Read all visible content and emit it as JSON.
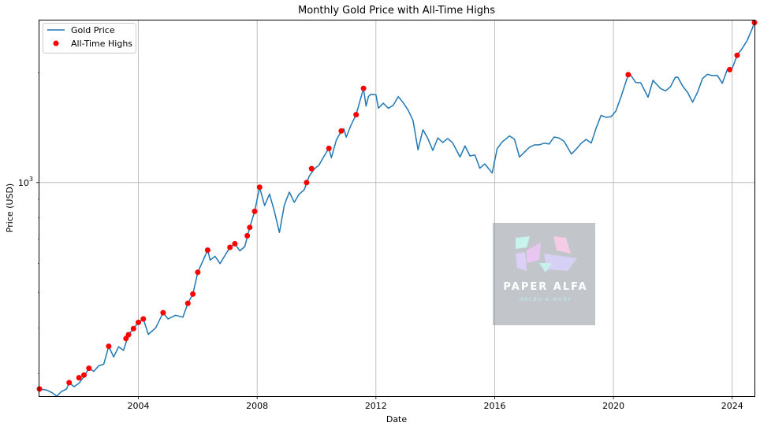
{
  "chart_data": {
    "type": "line",
    "title": "Monthly Gold Price with All-Time Highs",
    "xlabel": "Date",
    "ylabel": "Price (USD)",
    "y_scale": "log",
    "y_tick_label": {
      "base": "10",
      "exp": "3"
    },
    "x_ticks": [
      "2004",
      "2008",
      "2012",
      "2016",
      "2020",
      "2024"
    ],
    "xlim": [
      "2000-09",
      "2024-10"
    ],
    "ylim": [
      260,
      2780
    ],
    "grid": true,
    "legend_position": "upper-left",
    "colors": {
      "line": "#1f77b4",
      "marker": "#ff0000"
    },
    "series": [
      {
        "name": "Gold Price",
        "points": [
          [
            "2000-09",
            272
          ],
          [
            "2000-12",
            270
          ],
          [
            "2001-02",
            266
          ],
          [
            "2001-04",
            260
          ],
          [
            "2001-06",
            268
          ],
          [
            "2001-08",
            272
          ],
          [
            "2001-09",
            283
          ],
          [
            "2001-11",
            276
          ],
          [
            "2002-01",
            282
          ],
          [
            "2002-03",
            294
          ],
          [
            "2002-05",
            310
          ],
          [
            "2002-07",
            304
          ],
          [
            "2002-09",
            315
          ],
          [
            "2002-11",
            318
          ],
          [
            "2003-01",
            356
          ],
          [
            "2003-03",
            333
          ],
          [
            "2003-05",
            355
          ],
          [
            "2003-07",
            347
          ],
          [
            "2003-09",
            383
          ],
          [
            "2003-11",
            398
          ],
          [
            "2004-01",
            414
          ],
          [
            "2004-03",
            423
          ],
          [
            "2004-05",
            384
          ],
          [
            "2004-08",
            400
          ],
          [
            "2004-11",
            440
          ],
          [
            "2005-01",
            423
          ],
          [
            "2005-04",
            433
          ],
          [
            "2005-07",
            428
          ],
          [
            "2005-09",
            467
          ],
          [
            "2005-11",
            495
          ],
          [
            "2006-01",
            568
          ],
          [
            "2006-05",
            653
          ],
          [
            "2006-06",
            613
          ],
          [
            "2006-08",
            628
          ],
          [
            "2006-10",
            600
          ],
          [
            "2006-12",
            632
          ],
          [
            "2007-02",
            665
          ],
          [
            "2007-04",
            680
          ],
          [
            "2007-06",
            650
          ],
          [
            "2007-08",
            668
          ],
          [
            "2007-10",
            754
          ],
          [
            "2007-12",
            834
          ],
          [
            "2008-02",
            971
          ],
          [
            "2008-04",
            865
          ],
          [
            "2008-06",
            930
          ],
          [
            "2008-08",
            833
          ],
          [
            "2008-10",
            730
          ],
          [
            "2008-12",
            869
          ],
          [
            "2009-02",
            942
          ],
          [
            "2009-04",
            883
          ],
          [
            "2009-06",
            930
          ],
          [
            "2009-08",
            955
          ],
          [
            "2009-10",
            1040
          ],
          [
            "2009-12",
            1088
          ],
          [
            "2010-02",
            1117
          ],
          [
            "2010-04",
            1180
          ],
          [
            "2010-06",
            1241
          ],
          [
            "2010-07",
            1170
          ],
          [
            "2010-09",
            1307
          ],
          [
            "2010-11",
            1385
          ],
          [
            "2010-12",
            1405
          ],
          [
            "2011-01",
            1332
          ],
          [
            "2011-03",
            1439
          ],
          [
            "2011-05",
            1535
          ],
          [
            "2011-08",
            1812
          ],
          [
            "2011-09",
            1620
          ],
          [
            "2011-10",
            1722
          ],
          [
            "2011-11",
            1745
          ],
          [
            "2012-01",
            1740
          ],
          [
            "2012-02",
            1600
          ],
          [
            "2012-04",
            1650
          ],
          [
            "2012-06",
            1598
          ],
          [
            "2012-08",
            1628
          ],
          [
            "2012-10",
            1720
          ],
          [
            "2012-12",
            1657
          ],
          [
            "2013-02",
            1580
          ],
          [
            "2013-04",
            1480
          ],
          [
            "2013-06",
            1230
          ],
          [
            "2013-08",
            1395
          ],
          [
            "2013-10",
            1320
          ],
          [
            "2013-12",
            1225
          ],
          [
            "2014-02",
            1325
          ],
          [
            "2014-04",
            1288
          ],
          [
            "2014-06",
            1320
          ],
          [
            "2014-08",
            1285
          ],
          [
            "2014-11",
            1175
          ],
          [
            "2015-01",
            1260
          ],
          [
            "2015-03",
            1183
          ],
          [
            "2015-05",
            1190
          ],
          [
            "2015-07",
            1095
          ],
          [
            "2015-09",
            1125
          ],
          [
            "2015-12",
            1062
          ],
          [
            "2016-02",
            1238
          ],
          [
            "2016-04",
            1292
          ],
          [
            "2016-07",
            1342
          ],
          [
            "2016-09",
            1315
          ],
          [
            "2016-11",
            1174
          ],
          [
            "2017-01",
            1211
          ],
          [
            "2017-03",
            1249
          ],
          [
            "2017-05",
            1268
          ],
          [
            "2017-07",
            1269
          ],
          [
            "2017-09",
            1282
          ],
          [
            "2017-11",
            1275
          ],
          [
            "2018-01",
            1333
          ],
          [
            "2018-03",
            1325
          ],
          [
            "2018-05",
            1299
          ],
          [
            "2018-08",
            1198
          ],
          [
            "2018-10",
            1235
          ],
          [
            "2018-12",
            1282
          ],
          [
            "2019-02",
            1313
          ],
          [
            "2019-04",
            1283
          ],
          [
            "2019-06",
            1409
          ],
          [
            "2019-08",
            1528
          ],
          [
            "2019-10",
            1510
          ],
          [
            "2019-12",
            1515
          ],
          [
            "2020-02",
            1570
          ],
          [
            "2020-04",
            1712
          ],
          [
            "2020-07",
            1975
          ],
          [
            "2020-08",
            1968
          ],
          [
            "2020-10",
            1880
          ],
          [
            "2020-12",
            1878
          ],
          [
            "2021-03",
            1714
          ],
          [
            "2021-05",
            1906
          ],
          [
            "2021-08",
            1812
          ],
          [
            "2021-10",
            1783
          ],
          [
            "2021-12",
            1829
          ],
          [
            "2022-02",
            1943
          ],
          [
            "2022-03",
            1944
          ],
          [
            "2022-05",
            1837
          ],
          [
            "2022-07",
            1765
          ],
          [
            "2022-09",
            1660
          ],
          [
            "2022-11",
            1768
          ],
          [
            "2023-01",
            1928
          ],
          [
            "2023-03",
            1980
          ],
          [
            "2023-05",
            1963
          ],
          [
            "2023-07",
            1965
          ],
          [
            "2023-09",
            1870
          ],
          [
            "2023-11",
            2039
          ],
          [
            "2024-01",
            2055
          ],
          [
            "2024-03",
            2232
          ],
          [
            "2024-05",
            2328
          ],
          [
            "2024-07",
            2447
          ],
          [
            "2024-09",
            2634
          ],
          [
            "2024-10",
            2744
          ]
        ]
      },
      {
        "name": "All-Time Highs",
        "points": [
          [
            "2000-09",
            272
          ],
          [
            "2001-09",
            283
          ],
          [
            "2002-01",
            292
          ],
          [
            "2002-03",
            297
          ],
          [
            "2002-05",
            310
          ],
          [
            "2003-01",
            356
          ],
          [
            "2003-08",
            374
          ],
          [
            "2003-09",
            383
          ],
          [
            "2003-11",
            398
          ],
          [
            "2004-01",
            414
          ],
          [
            "2004-03",
            423
          ],
          [
            "2004-11",
            440
          ],
          [
            "2005-09",
            467
          ],
          [
            "2005-11",
            495
          ],
          [
            "2006-01",
            568
          ],
          [
            "2006-05",
            653
          ],
          [
            "2007-02",
            665
          ],
          [
            "2007-04",
            680
          ],
          [
            "2007-09",
            715
          ],
          [
            "2007-10",
            754
          ],
          [
            "2007-12",
            834
          ],
          [
            "2008-02",
            971
          ],
          [
            "2009-09",
            1000
          ],
          [
            "2009-11",
            1092
          ],
          [
            "2010-06",
            1241
          ],
          [
            "2010-11",
            1385
          ],
          [
            "2011-05",
            1535
          ],
          [
            "2011-08",
            1812
          ],
          [
            "2020-07",
            1975
          ],
          [
            "2023-12",
            2039
          ],
          [
            "2024-03",
            2232
          ],
          [
            "2024-10",
            2744
          ]
        ]
      }
    ]
  },
  "watermark": {
    "title": "PAPER ALFA",
    "subtitle": "MACRO & MORE"
  }
}
